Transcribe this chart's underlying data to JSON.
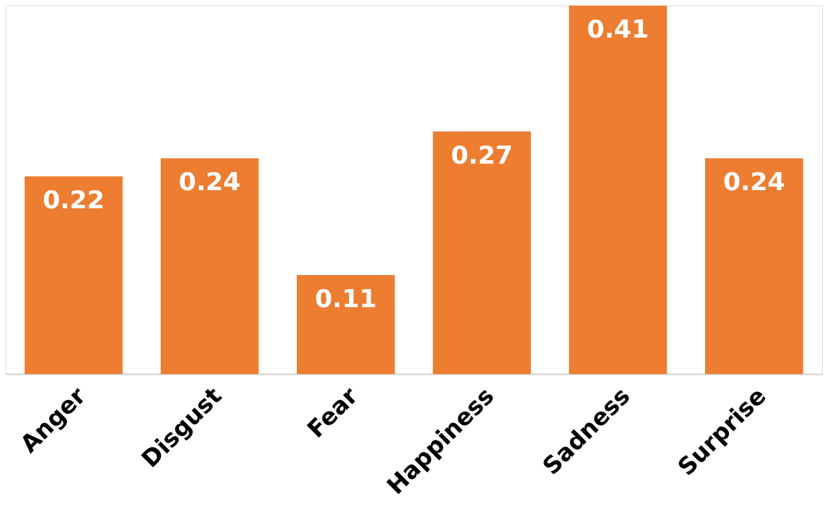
{
  "chart_data": {
    "type": "bar",
    "categories": [
      "Anger",
      "Disgust",
      "Fear",
      "Happiness",
      "Sadness",
      "Surprise"
    ],
    "values": [
      0.22,
      0.24,
      0.11,
      0.27,
      0.41,
      0.24
    ],
    "color": "#ed7d31",
    "ylim": [
      0,
      0.41
    ],
    "data_labels": true,
    "grid": false,
    "tick_labels": "x"
  }
}
